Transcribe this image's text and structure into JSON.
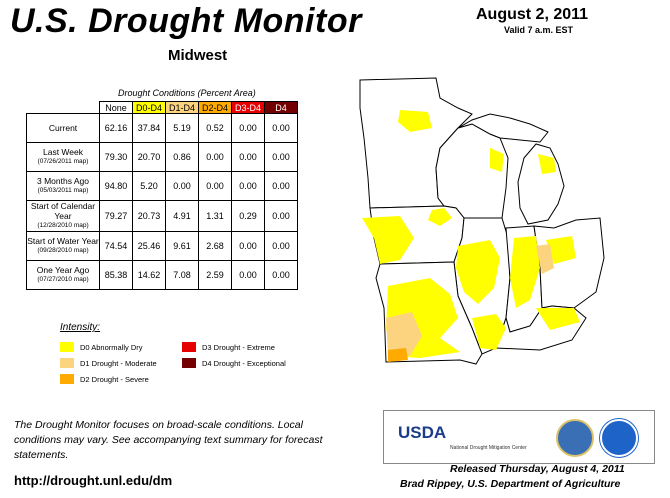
{
  "header": {
    "title": "U.S. Drought Monitor",
    "region": "Midwest",
    "date": "August 2, 2011",
    "valid": "Valid 7 a.m. EST"
  },
  "table": {
    "caption": "Drought Conditions (Percent Area)",
    "columns": [
      "None",
      "D0-D4",
      "D1-D4",
      "D2-D4",
      "D3-D4",
      "D4"
    ],
    "column_colors": [
      "#ffffff",
      "#ffff00",
      "#fcd37f",
      "#ffaa00",
      "#e60000",
      "#730000"
    ],
    "rows": [
      {
        "label": "Current",
        "sub": "",
        "values": [
          "62.16",
          "37.84",
          "5.19",
          "0.52",
          "0.00",
          "0.00"
        ]
      },
      {
        "label": "Last Week",
        "sub": "(07/26/2011 map)",
        "values": [
          "79.30",
          "20.70",
          "0.86",
          "0.00",
          "0.00",
          "0.00"
        ]
      },
      {
        "label": "3 Months Ago",
        "sub": "(05/03/2011 map)",
        "values": [
          "94.80",
          "5.20",
          "0.00",
          "0.00",
          "0.00",
          "0.00"
        ]
      },
      {
        "label": "Start of Calendar Year",
        "sub": "(12/28/2010 map)",
        "values": [
          "79.27",
          "20.73",
          "4.91",
          "1.31",
          "0.29",
          "0.00"
        ]
      },
      {
        "label": "Start of Water Year",
        "sub": "(09/28/2010 map)",
        "values": [
          "74.54",
          "25.46",
          "9.61",
          "2.68",
          "0.00",
          "0.00"
        ]
      },
      {
        "label": "One Year Ago",
        "sub": "(07/27/2010 map)",
        "values": [
          "85.38",
          "14.62",
          "7.08",
          "2.59",
          "0.00",
          "0.00"
        ]
      }
    ]
  },
  "legend": {
    "title": "Intensity:",
    "items": [
      {
        "label": "D0 Abnormally Dry",
        "color": "#ffff00"
      },
      {
        "label": "D1 Drought - Moderate",
        "color": "#fcd37f"
      },
      {
        "label": "D2 Drought - Severe",
        "color": "#ffaa00"
      },
      {
        "label": "D3 Drought - Extreme",
        "color": "#e60000"
      },
      {
        "label": "D4 Drought - Exceptional",
        "color": "#730000"
      }
    ]
  },
  "footnote": "The Drought Monitor focuses on broad-scale conditions. Local conditions may vary. See accompanying text summary for forecast statements.",
  "url": "http://drought.unl.edu/dm",
  "logos": {
    "usda": "USDA",
    "ndmc": "National Drought Mitigation Center"
  },
  "released": "Released Thursday, August 4, 2011",
  "author": "Brad Rippey, U.S. Department of Agriculture"
}
